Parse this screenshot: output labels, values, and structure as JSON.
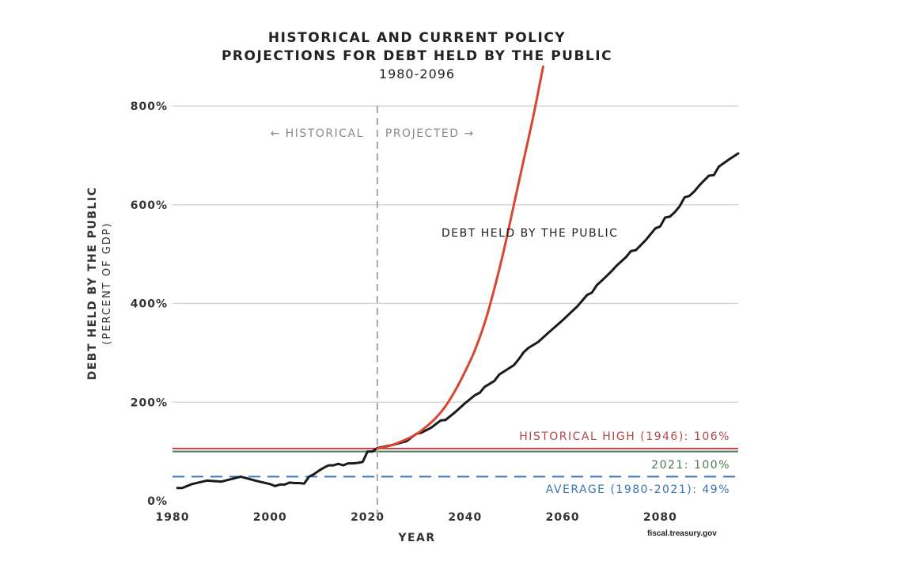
{
  "chart_data": {
    "type": "line",
    "title_lines": [
      "HISTORICAL AND CURRENT POLICY",
      "PROJECTIONS FOR DEBT HELD BY THE PUBLIC"
    ],
    "subtitle": "1980-2096",
    "xlabel": "YEAR",
    "ylabel": "DEBT HELD BY THE PUBLIC",
    "ylabel_sub": "(PERCENT OF GDP)",
    "xlim": [
      1980,
      2096
    ],
    "ylim": [
      0,
      800
    ],
    "x_ticks": [
      1980,
      2000,
      2020,
      2040,
      2060,
      2080
    ],
    "y_ticks": [
      0,
      200,
      400,
      600,
      800
    ],
    "y_tick_labels": [
      "0%",
      "200%",
      "400%",
      "600%",
      "800%"
    ],
    "grid": "horizontal",
    "divider": {
      "year": 2022,
      "historical_label": "← HISTORICAL",
      "projected_label": "PROJECTED →"
    },
    "series": [
      {
        "name": "DEBT HELD BY THE PUBLIC",
        "color": "#1a1a1a",
        "points": [
          [
            1981,
            26
          ],
          [
            1982,
            26
          ],
          [
            1984,
            34
          ],
          [
            1987,
            41
          ],
          [
            1990,
            39
          ],
          [
            1992,
            44
          ],
          [
            1994,
            49
          ],
          [
            1997,
            41
          ],
          [
            2000,
            34
          ],
          [
            2001,
            30
          ],
          [
            2002,
            33
          ],
          [
            2003,
            33
          ],
          [
            2004,
            37
          ],
          [
            2005,
            36
          ],
          [
            2006,
            36
          ],
          [
            2007,
            35
          ],
          [
            2008,
            49
          ],
          [
            2009,
            54
          ],
          [
            2010,
            61
          ],
          [
            2011,
            67
          ],
          [
            2012,
            72
          ],
          [
            2013,
            72
          ],
          [
            2014,
            75
          ],
          [
            2015,
            72
          ],
          [
            2016,
            76
          ],
          [
            2017,
            76
          ],
          [
            2018,
            77
          ],
          [
            2019,
            79
          ],
          [
            2020,
            100
          ],
          [
            2021,
            100
          ],
          [
            2022,
            107
          ],
          [
            2025,
            113
          ],
          [
            2028,
            121
          ],
          [
            2030,
            136
          ],
          [
            2031,
            138
          ],
          [
            2033,
            148
          ],
          [
            2035,
            163
          ],
          [
            2036,
            164
          ],
          [
            2038,
            180
          ],
          [
            2040,
            198
          ],
          [
            2042,
            214
          ],
          [
            2043,
            219
          ],
          [
            2044,
            231
          ],
          [
            2045,
            237
          ],
          [
            2046,
            243
          ],
          [
            2047,
            256
          ],
          [
            2050,
            275
          ],
          [
            2051,
            287
          ],
          [
            2052,
            301
          ],
          [
            2053,
            310
          ],
          [
            2055,
            322
          ],
          [
            2057,
            340
          ],
          [
            2060,
            366
          ],
          [
            2063,
            394
          ],
          [
            2065,
            417
          ],
          [
            2066,
            422
          ],
          [
            2067,
            437
          ],
          [
            2068,
            446
          ],
          [
            2070,
            465
          ],
          [
            2071,
            476
          ],
          [
            2073,
            494
          ],
          [
            2074,
            506
          ],
          [
            2075,
            508
          ],
          [
            2077,
            528
          ],
          [
            2079,
            552
          ],
          [
            2080,
            556
          ],
          [
            2081,
            574
          ],
          [
            2082,
            576
          ],
          [
            2083,
            585
          ],
          [
            2084,
            597
          ],
          [
            2085,
            615
          ],
          [
            2086,
            618
          ],
          [
            2087,
            627
          ],
          [
            2088,
            639
          ],
          [
            2089,
            649
          ],
          [
            2090,
            659
          ],
          [
            2091,
            660
          ],
          [
            2092,
            677
          ],
          [
            2094,
            691
          ],
          [
            2096,
            704
          ]
        ]
      },
      {
        "color": "#d9462f",
        "points": [
          [
            2022,
            106
          ],
          [
            2025,
            113
          ],
          [
            2028,
            125
          ],
          [
            2030,
            135
          ],
          [
            2032,
            150
          ],
          [
            2034,
            168
          ],
          [
            2036,
            192
          ],
          [
            2038,
            224
          ],
          [
            2040,
            262
          ],
          [
            2042,
            305
          ],
          [
            2044,
            360
          ],
          [
            2046,
            430
          ],
          [
            2048,
            510
          ],
          [
            2050,
            600
          ],
          [
            2052,
            690
          ],
          [
            2054,
            780
          ],
          [
            2056,
            880
          ]
        ]
      }
    ],
    "reference_lines": [
      {
        "label": "HISTORICAL HIGH (1946): 106%",
        "value": 106,
        "color": "#b5464f",
        "style": "solid"
      },
      {
        "label": "2021: 100%",
        "value": 100,
        "color": "#4f7b53",
        "style": "solid"
      },
      {
        "label": "AVERAGE (1980-2021): 49%",
        "value": 49,
        "color": "#3a73b6",
        "style": "dashed"
      }
    ],
    "source": "fiscal.treasury.gov"
  }
}
